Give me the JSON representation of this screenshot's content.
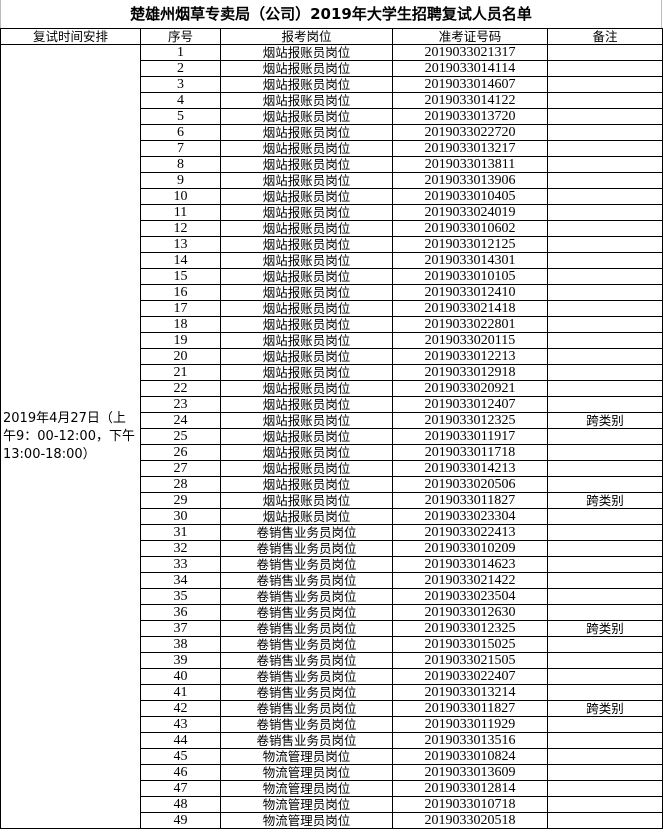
{
  "title": "楚雄州烟草专卖局（公司）2019年大学生招聘复试人员名单",
  "headers": [
    "复试时间安排",
    "序号",
    "报考岗位",
    "准考证号码",
    "备注"
  ],
  "schedule": "2019年4月27日（上午9：00-12:00，下午13:00-18:00）",
  "rows": [
    {
      "seq": "1",
      "position": "烟站报账员岗位",
      "id": "2019033021317",
      "remark": ""
    },
    {
      "seq": "2",
      "position": "烟站报账员岗位",
      "id": "2019033014114",
      "remark": ""
    },
    {
      "seq": "3",
      "position": "烟站报账员岗位",
      "id": "2019033014607",
      "remark": ""
    },
    {
      "seq": "4",
      "position": "烟站报账员岗位",
      "id": "2019033014122",
      "remark": ""
    },
    {
      "seq": "5",
      "position": "烟站报账员岗位",
      "id": "2019033013720",
      "remark": ""
    },
    {
      "seq": "6",
      "position": "烟站报账员岗位",
      "id": "2019033022720",
      "remark": ""
    },
    {
      "seq": "7",
      "position": "烟站报账员岗位",
      "id": "2019033013217",
      "remark": ""
    },
    {
      "seq": "8",
      "position": "烟站报账员岗位",
      "id": "2019033013811",
      "remark": ""
    },
    {
      "seq": "9",
      "position": "烟站报账员岗位",
      "id": "2019033013906",
      "remark": ""
    },
    {
      "seq": "10",
      "position": "烟站报账员岗位",
      "id": "2019033010405",
      "remark": ""
    },
    {
      "seq": "11",
      "position": "烟站报账员岗位",
      "id": "2019033024019",
      "remark": ""
    },
    {
      "seq": "12",
      "position": "烟站报账员岗位",
      "id": "2019033010602",
      "remark": ""
    },
    {
      "seq": "13",
      "position": "烟站报账员岗位",
      "id": "2019033012125",
      "remark": ""
    },
    {
      "seq": "14",
      "position": "烟站报账员岗位",
      "id": "2019033014301",
      "remark": ""
    },
    {
      "seq": "15",
      "position": "烟站报账员岗位",
      "id": "2019033010105",
      "remark": ""
    },
    {
      "seq": "16",
      "position": "烟站报账员岗位",
      "id": "2019033012410",
      "remark": ""
    },
    {
      "seq": "17",
      "position": "烟站报账员岗位",
      "id": "2019033021418",
      "remark": ""
    },
    {
      "seq": "18",
      "position": "烟站报账员岗位",
      "id": "2019033022801",
      "remark": ""
    },
    {
      "seq": "19",
      "position": "烟站报账员岗位",
      "id": "2019033020115",
      "remark": ""
    },
    {
      "seq": "20",
      "position": "烟站报账员岗位",
      "id": "2019033012213",
      "remark": ""
    },
    {
      "seq": "21",
      "position": "烟站报账员岗位",
      "id": "2019033012918",
      "remark": ""
    },
    {
      "seq": "22",
      "position": "烟站报账员岗位",
      "id": "2019033020921",
      "remark": ""
    },
    {
      "seq": "23",
      "position": "烟站报账员岗位",
      "id": "2019033012407",
      "remark": ""
    },
    {
      "seq": "24",
      "position": "烟站报账员岗位",
      "id": "2019033012325",
      "remark": "跨类别"
    },
    {
      "seq": "25",
      "position": "烟站报账员岗位",
      "id": "2019033011917",
      "remark": ""
    },
    {
      "seq": "26",
      "position": "烟站报账员岗位",
      "id": "2019033011718",
      "remark": ""
    },
    {
      "seq": "27",
      "position": "烟站报账员岗位",
      "id": "2019033014213",
      "remark": ""
    },
    {
      "seq": "28",
      "position": "烟站报账员岗位",
      "id": "2019033020506",
      "remark": ""
    },
    {
      "seq": "29",
      "position": "烟站报账员岗位",
      "id": "2019033011827",
      "remark": "跨类别"
    },
    {
      "seq": "30",
      "position": "烟站报账员岗位",
      "id": "2019033023304",
      "remark": ""
    },
    {
      "seq": "31",
      "position": "卷销售业务员岗位",
      "id": "2019033022413",
      "remark": ""
    },
    {
      "seq": "32",
      "position": "卷销售业务员岗位",
      "id": "2019033010209",
      "remark": ""
    },
    {
      "seq": "33",
      "position": "卷销售业务员岗位",
      "id": "2019033014623",
      "remark": ""
    },
    {
      "seq": "34",
      "position": "卷销售业务员岗位",
      "id": "2019033021422",
      "remark": ""
    },
    {
      "seq": "35",
      "position": "卷销售业务员岗位",
      "id": "2019033023504",
      "remark": ""
    },
    {
      "seq": "36",
      "position": "卷销售业务员岗位",
      "id": "2019033012630",
      "remark": ""
    },
    {
      "seq": "37",
      "position": "卷销售业务员岗位",
      "id": "2019033012325",
      "remark": "跨类别"
    },
    {
      "seq": "38",
      "position": "卷销售业务员岗位",
      "id": "2019033015025",
      "remark": ""
    },
    {
      "seq": "39",
      "position": "卷销售业务员岗位",
      "id": "2019033021505",
      "remark": ""
    },
    {
      "seq": "40",
      "position": "卷销售业务员岗位",
      "id": "2019033022407",
      "remark": ""
    },
    {
      "seq": "41",
      "position": "卷销售业务员岗位",
      "id": "2019033013214",
      "remark": ""
    },
    {
      "seq": "42",
      "position": "卷销售业务员岗位",
      "id": "2019033011827",
      "remark": "跨类别"
    },
    {
      "seq": "43",
      "position": "卷销售业务员岗位",
      "id": "2019033011929",
      "remark": ""
    },
    {
      "seq": "44",
      "position": "卷销售业务员岗位",
      "id": "2019033013516",
      "remark": ""
    },
    {
      "seq": "45",
      "position": "物流管理员岗位",
      "id": "2019033010824",
      "remark": ""
    },
    {
      "seq": "46",
      "position": "物流管理员岗位",
      "id": "2019033013609",
      "remark": ""
    },
    {
      "seq": "47",
      "position": "物流管理员岗位",
      "id": "2019033012814",
      "remark": ""
    },
    {
      "seq": "48",
      "position": "物流管理员岗位",
      "id": "2019033010718",
      "remark": ""
    },
    {
      "seq": "49",
      "position": "物流管理员岗位",
      "id": "2019033020518",
      "remark": ""
    }
  ]
}
